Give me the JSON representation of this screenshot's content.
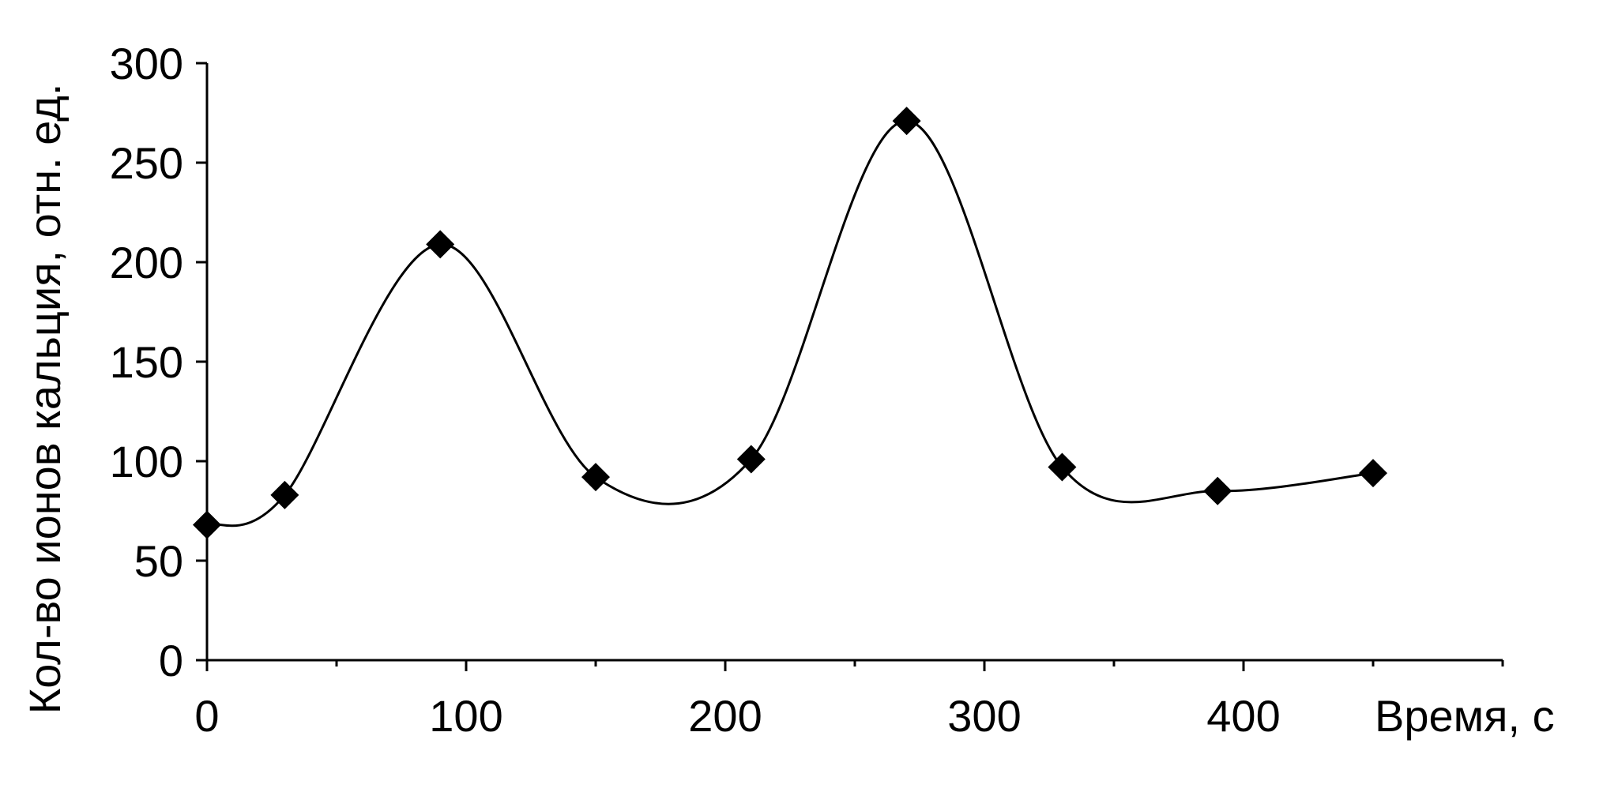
{
  "chart_data": {
    "type": "scatter",
    "xlabel": "Время, с",
    "ylabel": "Кол-во ионов кальция, отн. ед.",
    "xlim": [
      0,
      500
    ],
    "ylim": [
      0,
      300
    ],
    "x_ticks": [
      0,
      100,
      200,
      300,
      400
    ],
    "y_ticks": [
      0,
      50,
      100,
      150,
      200,
      250,
      300
    ],
    "grid": false,
    "legend": "none",
    "line_style": "smooth",
    "marker": "diamond",
    "colors": {
      "line": "#000000",
      "marker": "#000000"
    },
    "series": [
      {
        "points": [
          {
            "x": 0,
            "y": 68
          },
          {
            "x": 30,
            "y": 83
          },
          {
            "x": 90,
            "y": 209
          },
          {
            "x": 150,
            "y": 92
          },
          {
            "x": 210,
            "y": 101
          },
          {
            "x": 270,
            "y": 271
          },
          {
            "x": 330,
            "y": 97
          },
          {
            "x": 390,
            "y": 85
          },
          {
            "x": 450,
            "y": 94
          }
        ]
      }
    ]
  }
}
